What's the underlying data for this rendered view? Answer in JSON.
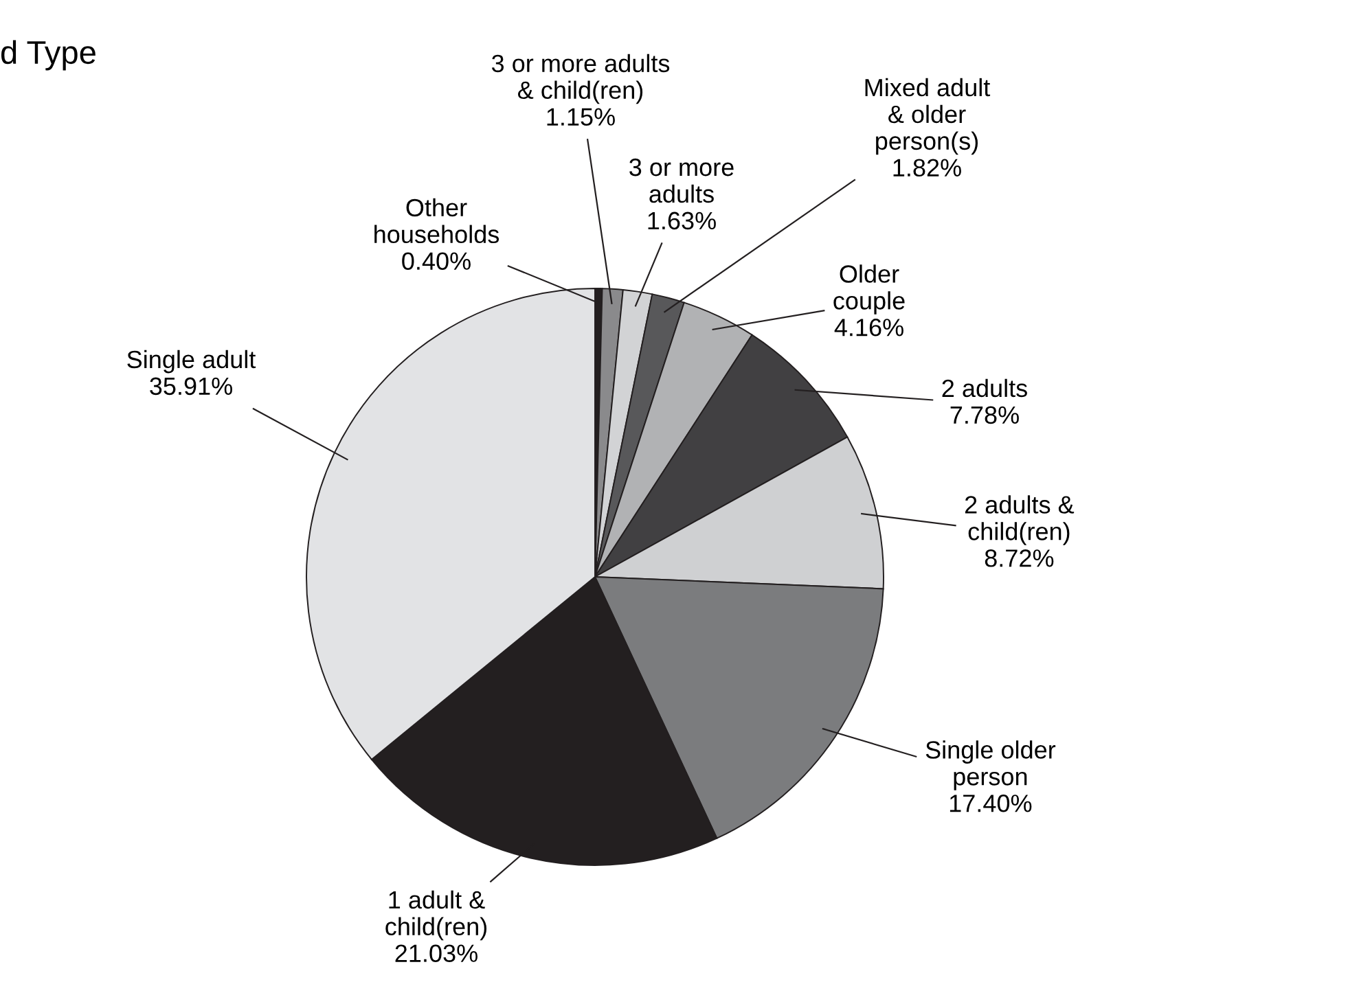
{
  "chart_data": {
    "type": "pie",
    "title": "d Type",
    "categories": [
      "Other\nhouseholds",
      "3 or more adults\n& child(ren)",
      "3 or more\nadults",
      "Mixed adult\n& older\nperson(s)",
      "Older\ncouple",
      "2 adults",
      "2 adults &\nchild(ren)",
      "Single older\nperson",
      "1 adult &\nchild(ren)",
      "Single adult"
    ],
    "values": [
      0.4,
      1.15,
      1.63,
      1.82,
      4.16,
      7.78,
      8.72,
      17.4,
      21.03,
      35.91
    ],
    "value_labels": [
      "0.40%",
      "1.15%",
      "1.63%",
      "1.82%",
      "4.16%",
      "7.78%",
      "8.72%",
      "17.40%",
      "21.03%",
      "35.91%"
    ],
    "colors": [
      "#231f20",
      "#8a8a8c",
      "#d2d3d5",
      "#58585a",
      "#b1b2b4",
      "#414042",
      "#cfd0d2",
      "#7b7c7e",
      "#231f20",
      "#e2e3e5"
    ],
    "legend": false
  }
}
